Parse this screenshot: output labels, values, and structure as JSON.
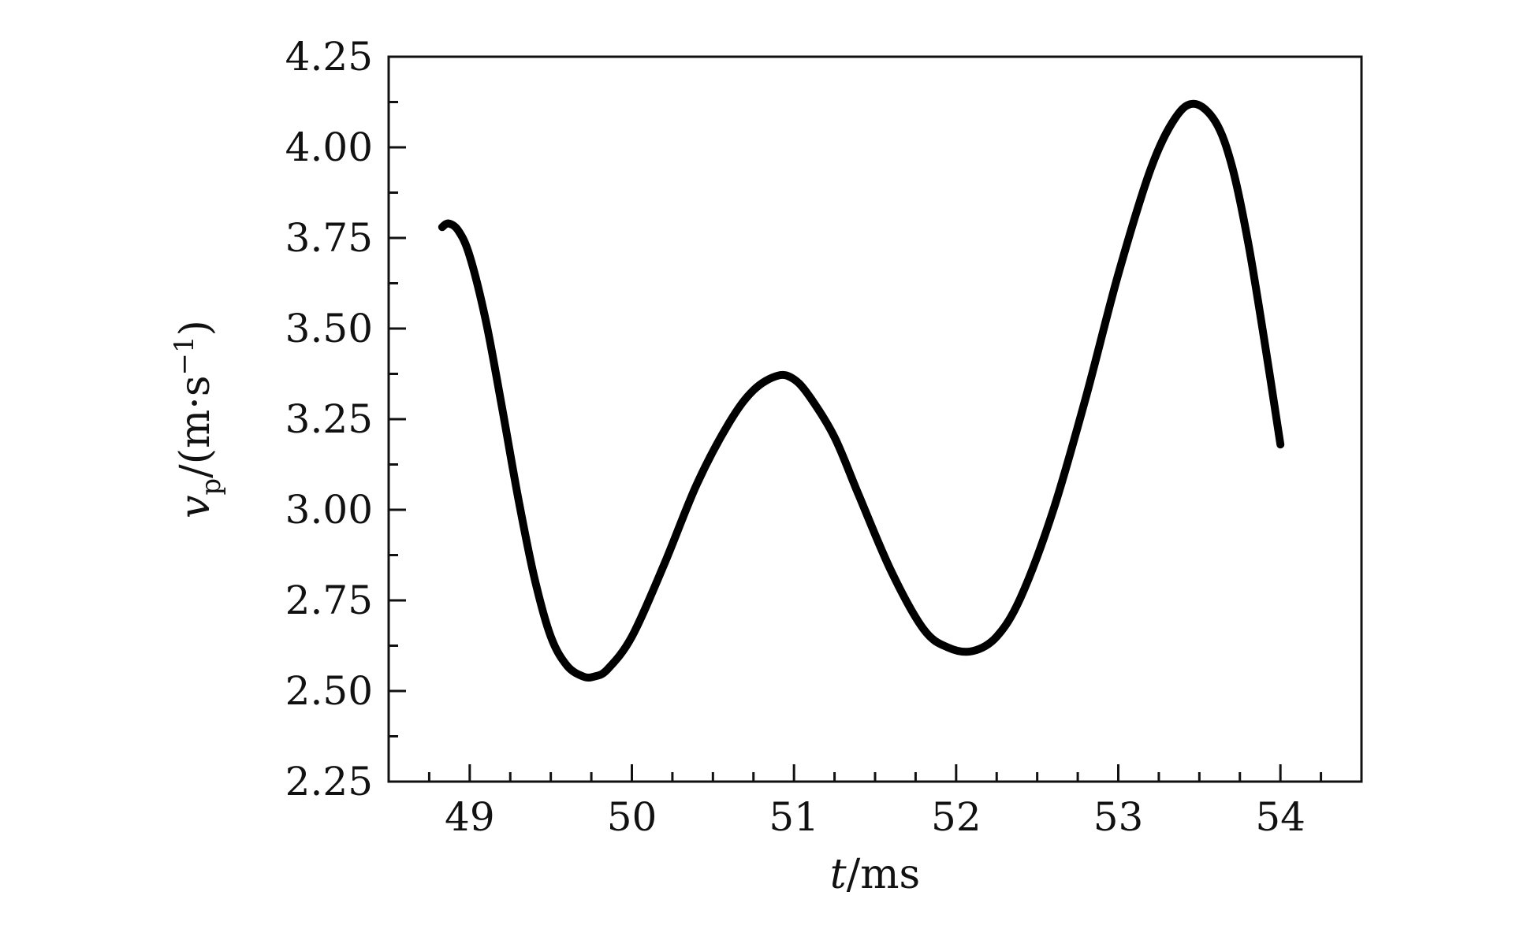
{
  "chart_data": {
    "type": "line",
    "title": "",
    "xlabel": {
      "var": "t",
      "unit": "/ms"
    },
    "ylabel": {
      "var": "v",
      "sub": "p",
      "unit_prefix": "/(m·s",
      "unit_sup": "−1",
      "unit_suffix": ")"
    },
    "xlim": [
      48.5,
      54.5
    ],
    "ylim": [
      2.25,
      4.25
    ],
    "xticks": [
      49,
      50,
      51,
      52,
      53,
      54
    ],
    "xtick_labels": [
      "49",
      "50",
      "51",
      "52",
      "53",
      "54"
    ],
    "yticks": [
      2.25,
      2.5,
      2.75,
      3.0,
      3.25,
      3.5,
      3.75,
      4.0,
      4.25
    ],
    "ytick_labels": [
      "2.25",
      "2.50",
      "2.75",
      "3.00",
      "3.25",
      "3.50",
      "3.75",
      "4.00",
      "4.25"
    ],
    "grid": false,
    "line_color": "#000000",
    "series": [
      {
        "x": [
          48.83,
          48.87,
          48.93,
          49.0,
          49.1,
          49.2,
          49.3,
          49.4,
          49.5,
          49.6,
          49.7,
          49.77,
          49.85,
          50.0,
          50.2,
          50.4,
          50.6,
          50.75,
          50.9,
          51.0,
          51.1,
          51.25,
          51.4,
          51.6,
          51.8,
          51.95,
          52.1,
          52.25,
          52.4,
          52.6,
          52.8,
          53.0,
          53.2,
          53.35,
          53.47,
          53.6,
          53.7,
          53.8,
          53.9,
          54.0
        ],
        "y": [
          3.78,
          3.79,
          3.77,
          3.7,
          3.52,
          3.28,
          3.03,
          2.81,
          2.65,
          2.57,
          2.54,
          2.54,
          2.56,
          2.65,
          2.85,
          3.07,
          3.24,
          3.33,
          3.37,
          3.36,
          3.31,
          3.2,
          3.04,
          2.83,
          2.67,
          2.62,
          2.61,
          2.65,
          2.76,
          3.0,
          3.31,
          3.65,
          3.94,
          4.08,
          4.12,
          4.07,
          3.95,
          3.74,
          3.47,
          3.18
        ]
      }
    ]
  }
}
